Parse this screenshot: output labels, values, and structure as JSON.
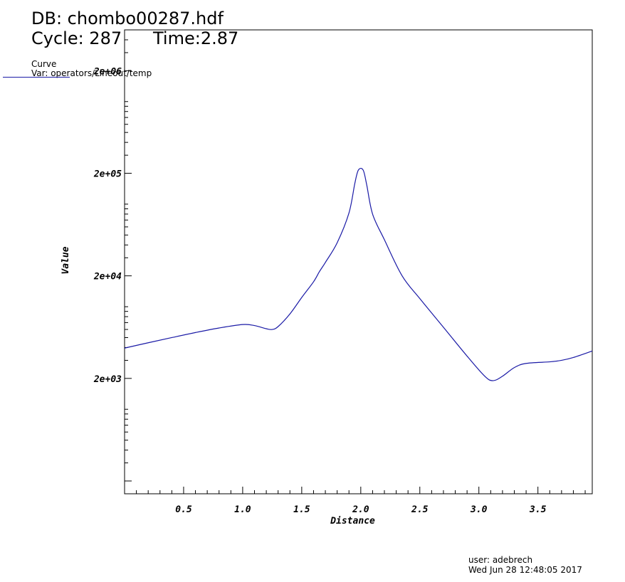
{
  "header": {
    "db": "DB: chombo00287.hdf",
    "cycle": "Cycle: 287",
    "time": "Time:2.87"
  },
  "legend": {
    "title": "Curve",
    "var": "Var: operators/Lineout/temp",
    "line_color": "#1a1aa6"
  },
  "footer": {
    "user": "user: adebrech",
    "date": "Wed Jun 28 12:48:05 2017"
  },
  "chart_data": {
    "type": "line",
    "xlabel": "Distance",
    "ylabel": "Value",
    "yscale": "log",
    "xlim": [
      0.0,
      3.96
    ],
    "ylim": [
      150,
      5000000
    ],
    "x_ticks": [
      "0.5",
      "1.0",
      "1.5",
      "2.0",
      "2.5",
      "3.0",
      "3.5"
    ],
    "y_ticks": [
      "2e+06",
      "2e+05",
      "2e+04",
      "2e+03"
    ],
    "grid": false,
    "series": [
      {
        "color": "#1a1aa6",
        "x": [
          0.0,
          0.2,
          0.4,
          0.6,
          0.8,
          1.0,
          1.1,
          1.2,
          1.25,
          1.3,
          1.4,
          1.5,
          1.6,
          1.65,
          1.7,
          1.8,
          1.9,
          1.95,
          1.98,
          2.02,
          2.05,
          2.1,
          2.2,
          2.35,
          2.5,
          2.7,
          2.9,
          3.05,
          3.12,
          3.2,
          3.3,
          3.4,
          3.6,
          3.7,
          3.8,
          3.96
        ],
        "y": [
          3950,
          4450,
          5000,
          5600,
          6200,
          6700,
          6550,
          6100,
          6000,
          6400,
          8500,
          12300,
          17500,
          22000,
          27000,
          42000,
          82000,
          160000,
          215000,
          215000,
          155000,
          80000,
          45000,
          20000,
          12000,
          6300,
          3300,
          2100,
          1900,
          2100,
          2550,
          2800,
          2900,
          3000,
          3200,
          3700
        ]
      }
    ]
  }
}
